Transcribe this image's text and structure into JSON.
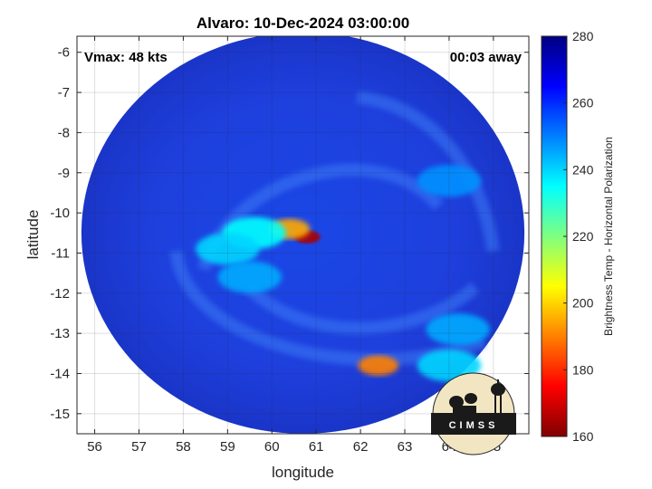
{
  "chart_data": {
    "type": "heatmap",
    "title": "Alvaro: 10-Dec-2024 03:00:00",
    "xlabel": "longitude",
    "ylabel": "latitude",
    "xlim": [
      55.6,
      65.8
    ],
    "ylim": [
      -15.5,
      -5.6
    ],
    "xticks": [
      56,
      57,
      58,
      59,
      60,
      61,
      62,
      63,
      64,
      65
    ],
    "yticks": [
      -6,
      -7,
      -8,
      -9,
      -10,
      -11,
      -12,
      -13,
      -14,
      -15
    ],
    "grid": true,
    "annotations": {
      "vmax": "Vmax: 48 kts",
      "time_offset": "00:03 away"
    },
    "colorbar": {
      "label": "Brightness Temp - Horizontal Polarization",
      "min": 160,
      "max": 280,
      "ticks": [
        280,
        260,
        240,
        220,
        200,
        180,
        160
      ],
      "colormap": "jet"
    },
    "swath": {
      "center_lon": 60.7,
      "center_lat": -10.5,
      "radius_deg": 5.0
    },
    "features": [
      {
        "lon": 60.8,
        "lat": -10.6,
        "value": 165
      },
      {
        "lon": 60.4,
        "lat": -10.4,
        "value": 195
      },
      {
        "lon": 59.6,
        "lat": -10.5,
        "value": 235
      },
      {
        "lon": 59.0,
        "lat": -10.9,
        "value": 240
      },
      {
        "lon": 59.5,
        "lat": -11.6,
        "value": 245
      },
      {
        "lon": 62.4,
        "lat": -13.8,
        "value": 190
      },
      {
        "lon": 64.0,
        "lat": -13.8,
        "value": 240
      },
      {
        "lon": 64.2,
        "lat": -12.9,
        "value": 245
      },
      {
        "lon": 64.0,
        "lat": -9.2,
        "value": 248
      }
    ]
  },
  "logo": {
    "text": "CIMSS"
  },
  "colors": {
    "background": "#ffffff",
    "swath_base": "#1e3cd8"
  }
}
